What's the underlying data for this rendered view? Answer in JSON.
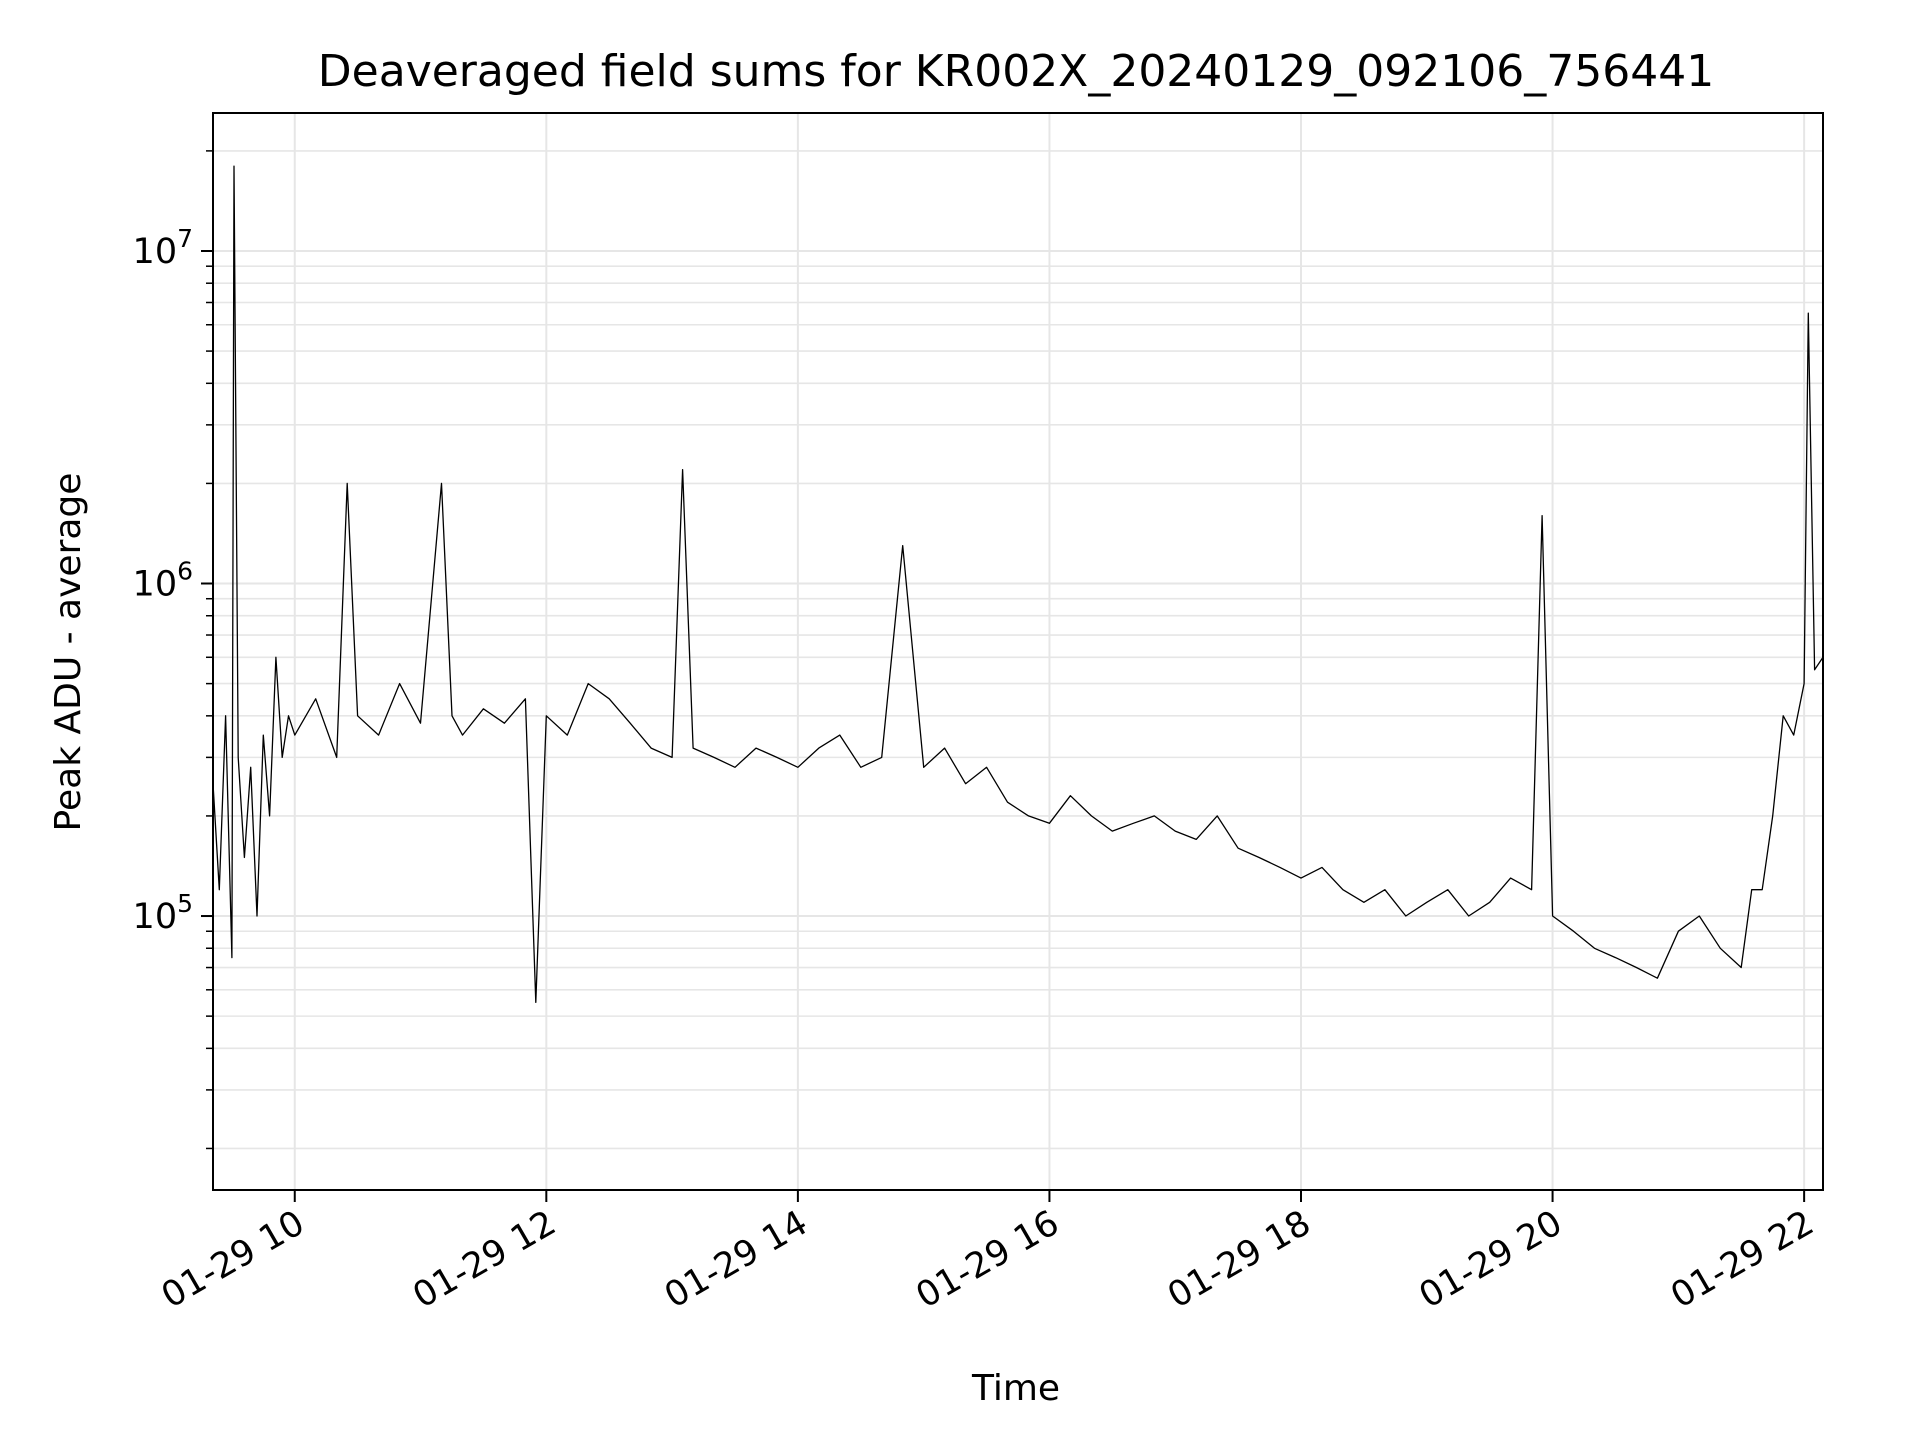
{
  "chart_data": {
    "type": "line",
    "title": "Deaveraged field sums for KR002X_20240129_092106_756441",
    "xlabel": "Time",
    "ylabel": "Peak ADU - average",
    "yscale": "log",
    "xlim": [
      "2024-01-29 09:21",
      "2024-01-29 22:09"
    ],
    "ylim": [
      15000,
      26000000
    ],
    "grid": true,
    "line_color": "#000000",
    "grid_color": "#e6e6e6",
    "x_ticks": [
      {
        "label": "01-29 10",
        "time": "2024-01-29 10:00"
      },
      {
        "label": "01-29 12",
        "time": "2024-01-29 12:00"
      },
      {
        "label": "01-29 14",
        "time": "2024-01-29 14:00"
      },
      {
        "label": "01-29 16",
        "time": "2024-01-29 16:00"
      },
      {
        "label": "01-29 18",
        "time": "2024-01-29 18:00"
      },
      {
        "label": "01-29 20",
        "time": "2024-01-29 20:00"
      },
      {
        "label": "01-29 22",
        "time": "2024-01-29 22:00"
      }
    ],
    "y_ticks": [
      {
        "base": "10",
        "exp": "5",
        "value": 100000
      },
      {
        "base": "10",
        "exp": "6",
        "value": 1000000
      },
      {
        "base": "10",
        "exp": "7",
        "value": 10000000
      }
    ],
    "series": [
      {
        "x": [
          "2024-01-29 09:21",
          "2024-01-29 09:24",
          "2024-01-29 09:27",
          "2024-01-29 09:30",
          "2024-01-29 09:31",
          "2024-01-29 09:33",
          "2024-01-29 09:36",
          "2024-01-29 09:39",
          "2024-01-29 09:42",
          "2024-01-29 09:45",
          "2024-01-29 09:48",
          "2024-01-29 09:51",
          "2024-01-29 09:54",
          "2024-01-29 09:57",
          "2024-01-29 10:00",
          "2024-01-29 10:10",
          "2024-01-29 10:20",
          "2024-01-29 10:25",
          "2024-01-29 10:30",
          "2024-01-29 10:40",
          "2024-01-29 10:50",
          "2024-01-29 11:00",
          "2024-01-29 11:10",
          "2024-01-29 11:15",
          "2024-01-29 11:20",
          "2024-01-29 11:30",
          "2024-01-29 11:40",
          "2024-01-29 11:50",
          "2024-01-29 11:55",
          "2024-01-29 12:00",
          "2024-01-29 12:10",
          "2024-01-29 12:20",
          "2024-01-29 12:30",
          "2024-01-29 12:40",
          "2024-01-29 12:50",
          "2024-01-29 13:00",
          "2024-01-29 13:05",
          "2024-01-29 13:10",
          "2024-01-29 13:20",
          "2024-01-29 13:30",
          "2024-01-29 13:40",
          "2024-01-29 13:50",
          "2024-01-29 14:00",
          "2024-01-29 14:10",
          "2024-01-29 14:20",
          "2024-01-29 14:30",
          "2024-01-29 14:40",
          "2024-01-29 14:50",
          "2024-01-29 15:00",
          "2024-01-29 15:10",
          "2024-01-29 15:20",
          "2024-01-29 15:30",
          "2024-01-29 15:40",
          "2024-01-29 15:50",
          "2024-01-29 16:00",
          "2024-01-29 16:10",
          "2024-01-29 16:20",
          "2024-01-29 16:30",
          "2024-01-29 16:40",
          "2024-01-29 16:50",
          "2024-01-29 17:00",
          "2024-01-29 17:10",
          "2024-01-29 17:20",
          "2024-01-29 17:30",
          "2024-01-29 17:40",
          "2024-01-29 17:50",
          "2024-01-29 18:00",
          "2024-01-29 18:10",
          "2024-01-29 18:20",
          "2024-01-29 18:30",
          "2024-01-29 18:40",
          "2024-01-29 18:50",
          "2024-01-29 19:00",
          "2024-01-29 19:10",
          "2024-01-29 19:20",
          "2024-01-29 19:30",
          "2024-01-29 19:40",
          "2024-01-29 19:50",
          "2024-01-29 19:55",
          "2024-01-29 20:00",
          "2024-01-29 20:10",
          "2024-01-29 20:20",
          "2024-01-29 20:30",
          "2024-01-29 20:40",
          "2024-01-29 20:50",
          "2024-01-29 21:00",
          "2024-01-29 21:10",
          "2024-01-29 21:20",
          "2024-01-29 21:30",
          "2024-01-29 21:35",
          "2024-01-29 21:40",
          "2024-01-29 21:45",
          "2024-01-29 21:50",
          "2024-01-29 21:55",
          "2024-01-29 22:00",
          "2024-01-29 22:02",
          "2024-01-29 22:05",
          "2024-01-29 22:09"
        ],
        "y": [
          250000,
          120000,
          400000,
          75000,
          18000000,
          300000,
          150000,
          280000,
          100000,
          350000,
          200000,
          600000,
          300000,
          400000,
          350000,
          450000,
          300000,
          2000000,
          400000,
          350000,
          500000,
          380000,
          2000000,
          400000,
          350000,
          420000,
          380000,
          450000,
          55000,
          400000,
          350000,
          500000,
          450000,
          380000,
          320000,
          300000,
          2200000,
          320000,
          300000,
          280000,
          320000,
          300000,
          280000,
          320000,
          350000,
          280000,
          300000,
          1300000,
          280000,
          320000,
          250000,
          280000,
          220000,
          200000,
          190000,
          230000,
          200000,
          180000,
          190000,
          200000,
          180000,
          170000,
          200000,
          160000,
          150000,
          140000,
          130000,
          140000,
          120000,
          110000,
          120000,
          100000,
          110000,
          120000,
          100000,
          110000,
          130000,
          120000,
          1600000,
          100000,
          90000,
          80000,
          75000,
          70000,
          65000,
          90000,
          100000,
          80000,
          70000,
          120000,
          120000,
          200000,
          400000,
          350000,
          500000,
          6500000,
          550000,
          600000
        ]
      }
    ]
  }
}
